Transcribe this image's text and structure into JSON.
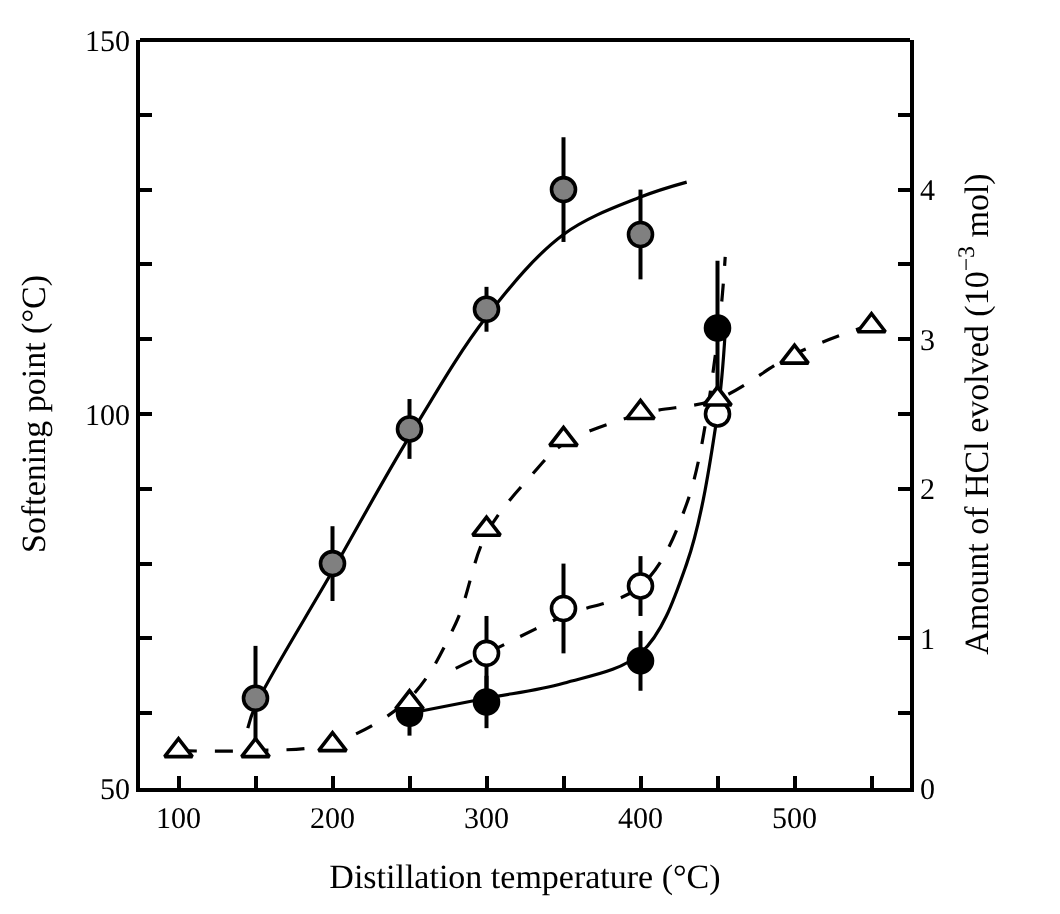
{
  "chart_data": {
    "type": "scatter",
    "xlabel": "Distillation temperature (°C)",
    "ylabel": "Softening point (°C)",
    "y2label": "Amount of HCl evolved (10$^{−3}$ mol)",
    "xlim": [
      75,
      575
    ],
    "xticks": [
      100,
      200,
      300,
      400,
      500,
      {
        "value": 150,
        "label": null
      },
      {
        "value": 250,
        "label": null
      },
      {
        "value": 350,
        "label": null
      },
      {
        "value": 450,
        "label": null
      },
      {
        "value": 550,
        "label": null
      }
    ],
    "ylim": [
      50,
      150
    ],
    "yticks": [
      50,
      100,
      150,
      {
        "value": 60,
        "label": null
      },
      {
        "value": 70,
        "label": null
      },
      {
        "value": 80,
        "label": null
      },
      {
        "value": 90,
        "label": null
      },
      {
        "value": 110,
        "label": null
      },
      {
        "value": 120,
        "label": null
      },
      {
        "value": 130,
        "label": null
      },
      {
        "value": 140,
        "label": null
      }
    ],
    "y2lim": [
      0,
      5
    ],
    "y2ticks": [
      0,
      1,
      2,
      3,
      4,
      {
        "value": 0.5,
        "label": null
      },
      {
        "value": 1.5,
        "label": null
      },
      {
        "value": 2.5,
        "label": null
      },
      {
        "value": 3.5,
        "label": null
      },
      {
        "value": 4.5,
        "label": null
      }
    ],
    "series": [
      {
        "type": "line",
        "color": "#000000",
        "line_style": "solid",
        "x": [
          145,
          150,
          200,
          250,
          300,
          350,
          400,
          430
        ],
        "values": [
          58,
          61,
          79,
          97,
          113,
          124,
          129,
          131
        ]
      },
      {
        "type": "line",
        "color": "#000000",
        "line_style": "dashed",
        "axis": "y2",
        "x": [
          100,
          150,
          200,
          250,
          280,
          300,
          330,
          350,
          400,
          450,
          500,
          550
        ],
        "values": [
          0.25,
          0.25,
          0.3,
          0.6,
          1.1,
          1.7,
          2.1,
          2.3,
          2.5,
          2.6,
          2.9,
          3.1
        ]
      },
      {
        "type": "line",
        "color": "#000000",
        "line_style": "dashed",
        "x": [
          280,
          300,
          350,
          400,
          430,
          450,
          455
        ],
        "values": [
          66,
          68,
          73,
          77,
          88,
          110,
          121
        ]
      },
      {
        "type": "line",
        "color": "#000000",
        "line_style": "solid",
        "x": [
          250,
          300,
          350,
          400,
          430,
          450,
          455
        ],
        "values": [
          60,
          62,
          64,
          68,
          80,
          100,
          111
        ]
      },
      {
        "marker": "circle",
        "color": "#808080",
        "x": [
          150,
          200,
          250,
          300,
          350,
          400
        ],
        "values": [
          62,
          80,
          98,
          114,
          130,
          124
        ],
        "errors": [
          7,
          5,
          4,
          3,
          7,
          6
        ]
      },
      {
        "marker": "circle",
        "color": "#ffffff",
        "x": [
          300,
          350,
          400,
          450
        ],
        "values": [
          68,
          74,
          77,
          100
        ],
        "errors": [
          5,
          6,
          4,
          null
        ]
      },
      {
        "marker": "circle",
        "color": "#000000",
        "x": [
          250,
          300,
          400,
          450
        ],
        "values": [
          60,
          61.5,
          67,
          111.5
        ],
        "errors": [
          3,
          3.5,
          4,
          9
        ]
      },
      {
        "marker": "triangle",
        "color": "#ffffff",
        "axis": "y2",
        "x": [
          100,
          150,
          200,
          250,
          300,
          350,
          400,
          450,
          500,
          550
        ],
        "values": [
          0.25,
          0.25,
          0.29,
          0.57,
          1.73,
          2.33,
          2.51,
          2.6,
          2.88,
          3.09
        ]
      }
    ]
  }
}
